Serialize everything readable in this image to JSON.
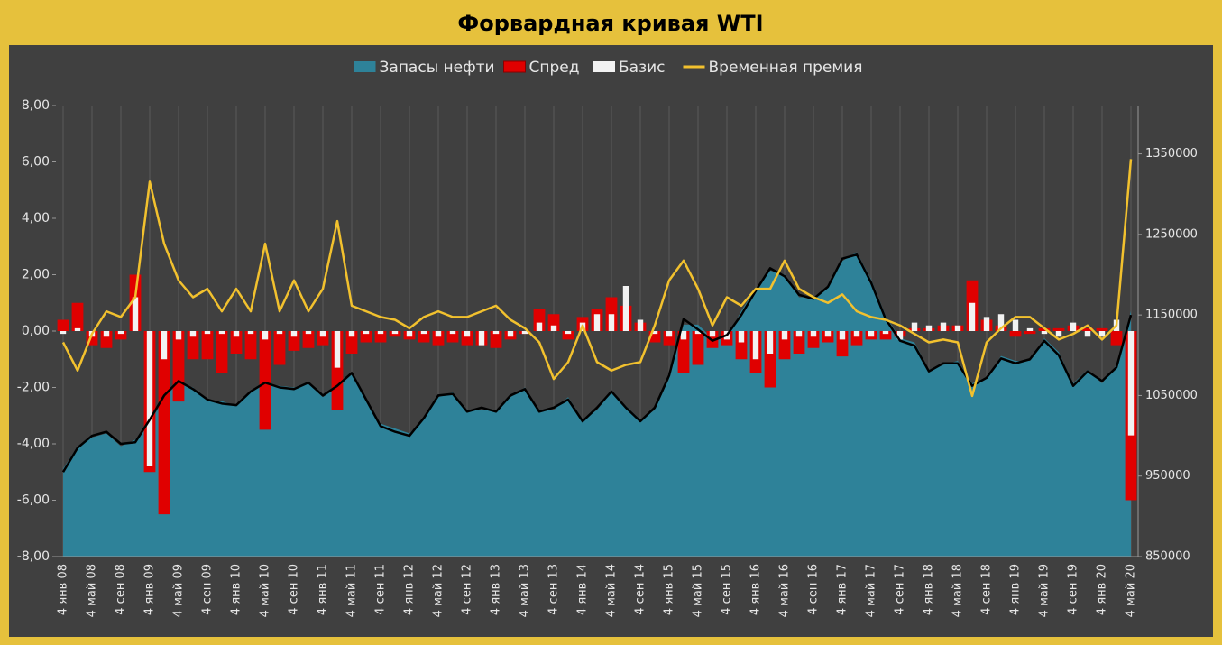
{
  "chart_data": {
    "type": "combo",
    "title": "Форвардная кривая WTI",
    "categories": [
      "4 янв 08",
      null,
      "4 май 08",
      null,
      "4 сен 08",
      null,
      "4 янв 09",
      null,
      "4 май 09",
      null,
      "4 сен 09",
      null,
      "4 янв 10",
      null,
      "4 май 10",
      null,
      "4 сен 10",
      null,
      "4 янв 11",
      null,
      "4 май 11",
      null,
      "4 сен 11",
      null,
      "4 янв 12",
      null,
      "4 май 12",
      null,
      "4 сен 12",
      null,
      "4 янв 13",
      null,
      "4 май 13",
      null,
      "4 сен 13",
      null,
      "4 янв 14",
      null,
      "4 май 14",
      null,
      "4 сен 14",
      null,
      "4 янв 15",
      null,
      "4 май 15",
      null,
      "4 сен 15",
      null,
      "4 янв 16",
      null,
      "4 май 16",
      null,
      "4 сен 16",
      null,
      "4 янв 17",
      null,
      "4 май 17",
      null,
      "4 сен 17",
      null,
      "4 янв 18",
      null,
      "4 май 18",
      null,
      "4 сен 18",
      null,
      "4 янв 19",
      null,
      "4 май 19",
      null,
      "4 сен 19",
      null,
      "4 янв 20",
      null,
      "4 май 20"
    ],
    "series": [
      {
        "name": "Запасы нефти",
        "type": "area",
        "axis": "y2",
        "color": "#2e8299",
        "values": [
          959000,
          987000,
          998000,
          1003000,
          987000,
          995000,
          1015000,
          1048000,
          1065000,
          1060000,
          1043000,
          1043000,
          1037000,
          1054000,
          1065000,
          1062000,
          1060000,
          1065000,
          1048000,
          1060000,
          1076000,
          1043000,
          1015000,
          1009000,
          1003000,
          1020000,
          1048000,
          1054000,
          1032000,
          1032000,
          1032000,
          1048000,
          1060000,
          1032000,
          1032000,
          1048000,
          1020000,
          1032000,
          1054000,
          1037000,
          1020000,
          1032000,
          1071000,
          1138000,
          1138000,
          1121000,
          1121000,
          1155000,
          1183000,
          1205000,
          1200000,
          1172000,
          1172000,
          1183000,
          1217000,
          1228000,
          1194000,
          1149000,
          1121000,
          1116000,
          1082000,
          1088000,
          1093000,
          1065000,
          1071000,
          1099000,
          1093000,
          1093000,
          1121000,
          1104000,
          1065000,
          1082000,
          1065000,
          1088000,
          1155000
        ]
      },
      {
        "name": "Спред",
        "type": "bar",
        "color": "#e00000",
        "values": [
          0.4,
          1.0,
          -0.5,
          -0.6,
          -0.3,
          2.0,
          -5.0,
          -6.5,
          -2.5,
          -1.0,
          -1.0,
          -1.5,
          -0.8,
          -1.0,
          -3.5,
          -1.2,
          -0.7,
          -0.6,
          -0.5,
          -2.8,
          -0.8,
          -0.4,
          -0.4,
          -0.2,
          -0.3,
          -0.4,
          -0.5,
          -0.4,
          -0.5,
          -0.5,
          -0.6,
          -0.3,
          -0.1,
          0.8,
          0.6,
          -0.3,
          0.5,
          0.8,
          1.2,
          0.9,
          0.3,
          -0.4,
          -0.5,
          -1.5,
          -1.2,
          -0.6,
          -0.5,
          -1.0,
          -1.5,
          -2.0,
          -1.0,
          -0.8,
          -0.6,
          -0.4,
          -0.9,
          -0.5,
          -0.3,
          -0.3,
          -0.2,
          0.1,
          0.1,
          0.2,
          0.2,
          1.8,
          0.4,
          0.2,
          -0.2,
          -0.1,
          0.1,
          0.1,
          0.2,
          0.1,
          0.1,
          -0.5,
          -6.0
        ]
      },
      {
        "name": "Базис",
        "type": "bar",
        "color": "#f2f2f2",
        "values": [
          -0.1,
          0.1,
          -0.2,
          -0.2,
          -0.1,
          1.2,
          -4.8,
          -1.0,
          -0.3,
          -0.2,
          -0.1,
          -0.1,
          -0.2,
          -0.1,
          -0.3,
          -0.1,
          -0.2,
          -0.1,
          -0.2,
          -1.3,
          -0.2,
          -0.1,
          -0.1,
          -0.1,
          -0.2,
          -0.1,
          -0.2,
          -0.1,
          -0.2,
          -0.5,
          -0.1,
          -0.2,
          -0.1,
          0.3,
          0.2,
          -0.1,
          0.3,
          0.6,
          0.6,
          1.6,
          0.4,
          -0.1,
          -0.2,
          -0.3,
          -0.1,
          -0.2,
          -0.3,
          -0.4,
          -1.0,
          -0.8,
          -0.3,
          -0.2,
          -0.2,
          -0.2,
          -0.3,
          -0.2,
          -0.2,
          -0.1,
          -0.3,
          0.3,
          0.2,
          0.3,
          0.2,
          1.0,
          0.5,
          0.6,
          0.4,
          0.1,
          -0.1,
          -0.2,
          0.3,
          -0.2,
          -0.2,
          0.4,
          -3.7
        ]
      },
      {
        "name": "Временная премия",
        "type": "line",
        "color": "#f2c12e",
        "values": [
          -0.4,
          -1.4,
          -0.1,
          0.7,
          0.5,
          1.2,
          5.3,
          3.1,
          1.8,
          1.2,
          1.5,
          0.7,
          1.5,
          0.7,
          3.1,
          0.7,
          1.8,
          0.7,
          1.5,
          3.9,
          0.9,
          0.7,
          0.5,
          0.4,
          0.1,
          0.5,
          0.7,
          0.5,
          0.5,
          0.7,
          0.9,
          0.4,
          0.1,
          -0.4,
          -1.7,
          -1.1,
          0.2,
          -1.1,
          -1.4,
          -1.2,
          -1.1,
          0.2,
          1.8,
          2.5,
          1.5,
          0.2,
          1.2,
          0.9,
          1.5,
          1.5,
          2.5,
          1.5,
          1.2,
          1.0,
          1.3,
          0.7,
          0.5,
          0.4,
          0.2,
          -0.1,
          -0.4,
          -0.3,
          -0.4,
          -2.3,
          -0.4,
          0.1,
          0.5,
          0.5,
          0.1,
          -0.3,
          -0.1,
          0.2,
          -0.3,
          0.2,
          6.1
        ]
      },
      {
        "type": "line",
        "axis": "y2",
        "color": "#000000",
        "values": [
          955000,
          985000,
          1000000,
          1005000,
          990000,
          992000,
          1020000,
          1050000,
          1068000,
          1058000,
          1045000,
          1040000,
          1038000,
          1055000,
          1066000,
          1060000,
          1058000,
          1066000,
          1050000,
          1062000,
          1078000,
          1045000,
          1012000,
          1005000,
          1000000,
          1022000,
          1050000,
          1052000,
          1030000,
          1035000,
          1030000,
          1050000,
          1058000,
          1030000,
          1035000,
          1045000,
          1018000,
          1035000,
          1055000,
          1035000,
          1018000,
          1035000,
          1075000,
          1145000,
          1132000,
          1118000,
          1125000,
          1150000,
          1180000,
          1208000,
          1198000,
          1175000,
          1170000,
          1185000,
          1220000,
          1225000,
          1190000,
          1145000,
          1118000,
          1112000,
          1080000,
          1090000,
          1090000,
          1062000,
          1072000,
          1096000,
          1090000,
          1095000,
          1118000,
          1100000,
          1062000,
          1080000,
          1068000,
          1085000,
          1150000
        ]
      }
    ],
    "ylim": [
      -8,
      8
    ],
    "yticks": [
      {
        "value": -8,
        "label": "-8,00"
      },
      {
        "value": -6,
        "label": "-6,00"
      },
      {
        "value": -4,
        "label": "-4,00"
      },
      {
        "value": -2,
        "label": "-2,00"
      },
      {
        "value": 0,
        "label": "0,00"
      },
      {
        "value": 2,
        "label": "2,00"
      },
      {
        "value": 4,
        "label": "4,00"
      },
      {
        "value": 6,
        "label": "6,00"
      },
      {
        "value": 8,
        "label": "8,00"
      }
    ],
    "y2lim": [
      850000,
      1410000
    ],
    "y2ticks": [
      850000,
      950000,
      1050000,
      1150000,
      1250000,
      1350000
    ],
    "grid": true,
    "legend": "top"
  }
}
